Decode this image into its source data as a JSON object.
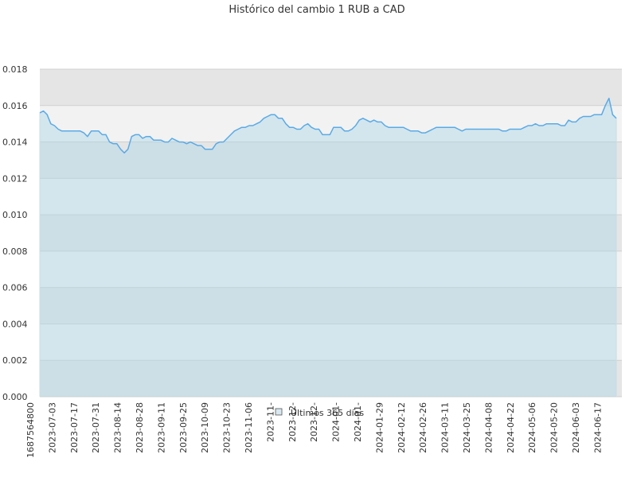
{
  "chart_data": {
    "type": "area",
    "title": "Histórico del cambio 1 RUB a CAD",
    "xlabel": "",
    "ylabel": "",
    "ylim": [
      0,
      0.018
    ],
    "y_ticks": [
      "0.000",
      "0.002",
      "0.004",
      "0.006",
      "0.008",
      "0.010",
      "0.012",
      "0.014",
      "0.016",
      "0.018"
    ],
    "x_ticks": [
      "1687564800",
      "2023-07-03",
      "2023-07-17",
      "2023-07-31",
      "2023-08-14",
      "2023-08-28",
      "2023-09-11",
      "2023-09-25",
      "2023-10-09",
      "2023-10-23",
      "2023-11-06",
      "2023-11-",
      "2023-12-",
      "2023-12-",
      "2024-01-",
      "2024-01-",
      "2024-01-29",
      "2024-02-12",
      "2024-02-26",
      "2024-03-11",
      "2024-03-25",
      "2024-04-08",
      "2024-04-22",
      "2024-05-06",
      "2024-05-20",
      "2024-06-03",
      "2024-06-17"
    ],
    "grid": true,
    "legend_position": "bottom-center",
    "colors": {
      "line": "#5aaae6",
      "fill": "#add8e6",
      "band_light": "#f2f2f2",
      "band_dark": "#e5e5e5"
    },
    "series": [
      {
        "name": "Últimos 365 días",
        "x_range": [
          "2023-06-24",
          "2024-06-23"
        ],
        "values": [
          0.0156,
          0.0157,
          0.0155,
          0.015,
          0.0149,
          0.0147,
          0.0146,
          0.0146,
          0.0146,
          0.0146,
          0.0146,
          0.0146,
          0.0145,
          0.0143,
          0.0146,
          0.0146,
          0.0146,
          0.0144,
          0.0144,
          0.014,
          0.0139,
          0.0139,
          0.0136,
          0.0134,
          0.0136,
          0.0143,
          0.0144,
          0.0144,
          0.0142,
          0.0143,
          0.0143,
          0.0141,
          0.0141,
          0.0141,
          0.014,
          0.014,
          0.0142,
          0.0141,
          0.014,
          0.014,
          0.0139,
          0.014,
          0.0139,
          0.0138,
          0.0138,
          0.0136,
          0.0136,
          0.0136,
          0.0139,
          0.014,
          0.014,
          0.0142,
          0.0144,
          0.0146,
          0.0147,
          0.0148,
          0.0148,
          0.0149,
          0.0149,
          0.015,
          0.0151,
          0.0153,
          0.0154,
          0.0155,
          0.0155,
          0.0153,
          0.0153,
          0.015,
          0.0148,
          0.0148,
          0.0147,
          0.0147,
          0.0149,
          0.015,
          0.0148,
          0.0147,
          0.0147,
          0.0144,
          0.0144,
          0.0144,
          0.0148,
          0.0148,
          0.0148,
          0.0146,
          0.0146,
          0.0147,
          0.0149,
          0.0152,
          0.0153,
          0.0152,
          0.0151,
          0.0152,
          0.0151,
          0.0151,
          0.0149,
          0.0148,
          0.0148,
          0.0148,
          0.0148,
          0.0148,
          0.0147,
          0.0146,
          0.0146,
          0.0146,
          0.0145,
          0.0145,
          0.0146,
          0.0147,
          0.0148,
          0.0148,
          0.0148,
          0.0148,
          0.0148,
          0.0148,
          0.0147,
          0.0146,
          0.0147,
          0.0147,
          0.0147,
          0.0147,
          0.0147,
          0.0147,
          0.0147,
          0.0147,
          0.0147,
          0.0147,
          0.0146,
          0.0146,
          0.0147,
          0.0147,
          0.0147,
          0.0147,
          0.0148,
          0.0149,
          0.0149,
          0.015,
          0.0149,
          0.0149,
          0.015,
          0.015,
          0.015,
          0.015,
          0.0149,
          0.0149,
          0.0152,
          0.0151,
          0.0151,
          0.0153,
          0.0154,
          0.0154,
          0.0154,
          0.0155,
          0.0155,
          0.0155,
          0.016,
          0.0164,
          0.0155,
          0.0153
        ]
      }
    ]
  }
}
